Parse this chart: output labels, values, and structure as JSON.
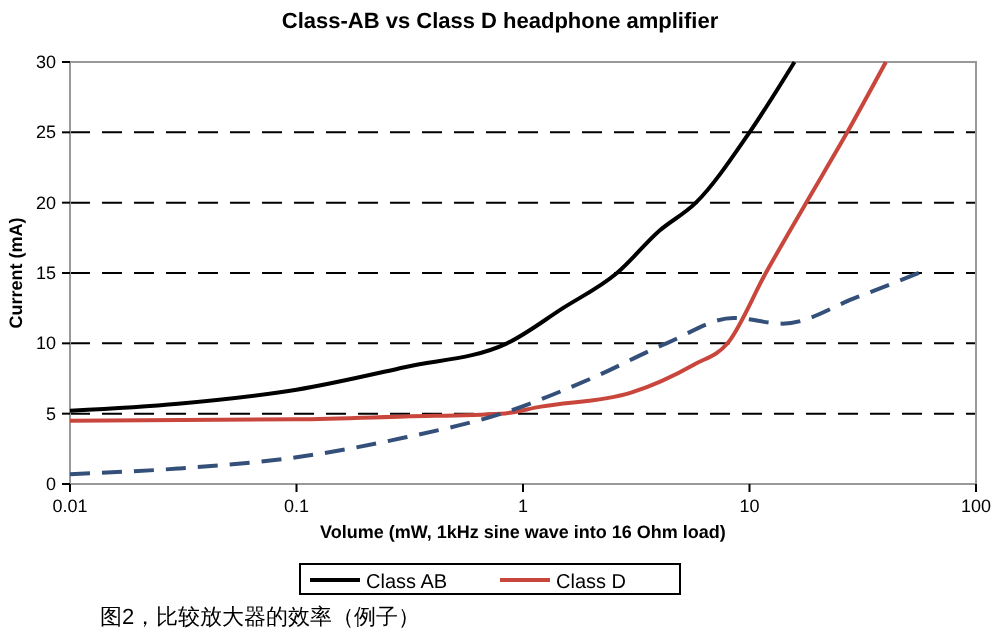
{
  "chart_data": {
    "type": "line",
    "title": "Class-AB vs Class D headphone amplifier",
    "xlabel": "Volume (mW, 1kHz sine wave into 16 Ohm load)",
    "ylabel": "Current (mA)",
    "log": "x",
    "xlim": [
      0.01,
      100
    ],
    "xticks": [
      0.01,
      0.1,
      1,
      10,
      100
    ],
    "ylim": [
      0,
      30
    ],
    "yticks": [
      0,
      5,
      10,
      15,
      20,
      25,
      30
    ],
    "grid": "y",
    "legend": "bottom",
    "series": [
      {
        "name": "Class AB",
        "color": "#000000",
        "line_style": "solid",
        "x": [
          0.01,
          0.03,
          0.1,
          0.3,
          0.85,
          1.5,
          2.6,
          4,
          5.8,
          10,
          15.8
        ],
        "values": [
          5.2,
          5.7,
          6.7,
          8.3,
          10,
          12.5,
          15,
          18,
          20,
          25,
          30
        ]
      },
      {
        "name": "Class D",
        "color": "#c8463c",
        "line_style": "solid",
        "x": [
          0.01,
          0.1,
          0.3,
          0.8,
          1.2,
          3,
          5.7,
          8,
          11.8,
          17.8,
          27,
          40
        ],
        "values": [
          4.5,
          4.6,
          4.8,
          5,
          5.5,
          6.5,
          8.5,
          10,
          15,
          20,
          25,
          30
        ]
      },
      {
        "color": "#34507a",
        "line_style": "dashed",
        "x": [
          0.01,
          0.03,
          0.1,
          0.3,
          0.8,
          2,
          4.3,
          8.5,
          14,
          30,
          60
        ],
        "values": [
          0.7,
          1.1,
          1.9,
          3.3,
          5,
          7.5,
          10,
          11.8,
          11.4,
          13.3,
          15.2
        ]
      }
    ],
    "annotations": [
      "图2，比较放大器的效率（例子）"
    ]
  }
}
